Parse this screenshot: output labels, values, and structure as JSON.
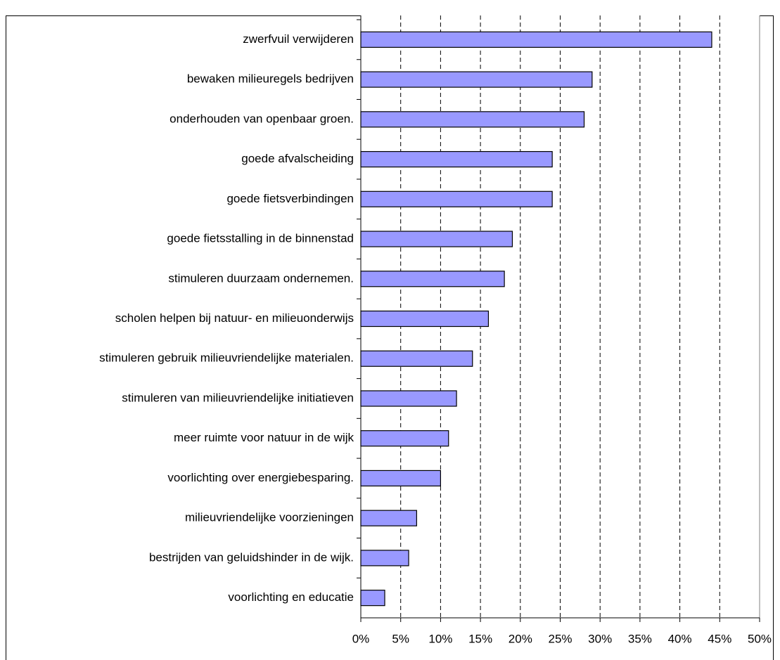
{
  "chart_data": {
    "type": "bar",
    "orientation": "horizontal",
    "categories": [
      "zwerfvuil verwijderen",
      "bewaken milieuregels bedrijven",
      "onderhouden van openbaar groen.",
      "goede afvalscheiding",
      "goede fietsverbindingen",
      "goede fietsstalling in de binnenstad",
      "stimuleren duurzaam ondernemen.",
      "scholen helpen bij natuur- en milieuonderwijs",
      "stimuleren gebruik milieuvriendelijke materialen.",
      "stimuleren van milieuvriendelijke initiatieven",
      "meer ruimte voor natuur in de wijk",
      "voorlichting over energiebesparing.",
      "milieuvriendelijke voorzieningen",
      "bestrijden van geluidshinder in de wijk.",
      "voorlichting en educatie"
    ],
    "values": [
      44,
      29,
      28,
      24,
      24,
      19,
      18,
      16,
      14,
      12,
      11,
      10,
      7,
      6,
      3
    ],
    "color": "#9999ff",
    "xlim": [
      0,
      50
    ],
    "xticks": [
      {
        "value": 0,
        "label": "0%"
      },
      {
        "value": 5,
        "label": "5%"
      },
      {
        "value": 10,
        "label": "10%"
      },
      {
        "value": 15,
        "label": "15%"
      },
      {
        "value": 20,
        "label": "20%"
      },
      {
        "value": 25,
        "label": "25%"
      },
      {
        "value": 30,
        "label": "30%"
      },
      {
        "value": 35,
        "label": "35%"
      },
      {
        "value": 40,
        "label": "40%"
      },
      {
        "value": 45,
        "label": "45%"
      },
      {
        "value": 50,
        "label": "50%"
      }
    ],
    "grid": true
  }
}
